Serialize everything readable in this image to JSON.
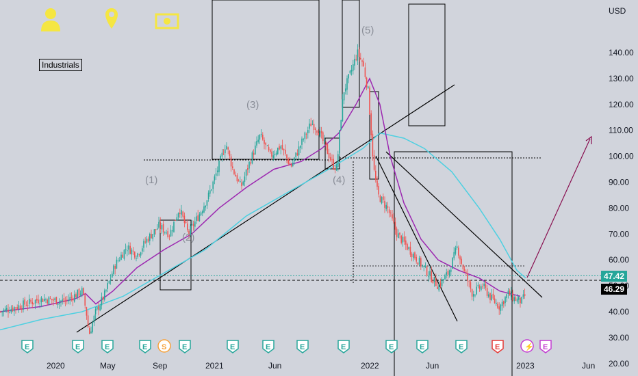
{
  "colors": {
    "bg": "#d1d4dc",
    "sma_fast": "#9c27b0",
    "sma_slow": "#4dd0e1",
    "up": "#26a69a",
    "down": "#ef5350",
    "icon": "#f5e642",
    "last": "#26a69a",
    "current": "#000000",
    "arrow": "#880e4f"
  },
  "header": {
    "sector": "Industrials",
    "icons": [
      "person-icon",
      "location-pin-icon",
      "banknote-icon"
    ]
  },
  "chart_data": {
    "type": "candlestick",
    "currency": "USD",
    "ylim": [
      18,
      150
    ],
    "y_ticks": [
      "140.00",
      "130.00",
      "120.00",
      "110.00",
      "100.00",
      "90.00",
      "80.00",
      "70.00",
      "60.00",
      "50.00",
      "40.00",
      "30.00",
      "20.00"
    ],
    "x_ticks": [
      "2020",
      "May",
      "Sep",
      "2021",
      "Jun",
      "2022",
      "Jun",
      "2023",
      "Jun"
    ],
    "price_labels": {
      "last": "47.42",
      "current": "46.29"
    },
    "wave_labels": [
      "(1)",
      "(2)",
      "(3)",
      "(4)",
      "(5)"
    ],
    "events": [
      "E",
      "E",
      "E",
      "E",
      "S",
      "E",
      "E",
      "E",
      "E",
      "E",
      "E",
      "E",
      "E",
      "E",
      "E",
      "E",
      "E"
    ],
    "price_path": [
      [
        0,
        40
      ],
      [
        25,
        42
      ],
      [
        60,
        45
      ],
      [
        95,
        44
      ],
      [
        120,
        48
      ],
      [
        126,
        40
      ],
      [
        130,
        31
      ],
      [
        140,
        40
      ],
      [
        152,
        46
      ],
      [
        168,
        58
      ],
      [
        185,
        65
      ],
      [
        200,
        62
      ],
      [
        215,
        68
      ],
      [
        232,
        73
      ],
      [
        248,
        70
      ],
      [
        262,
        80
      ],
      [
        275,
        70
      ],
      [
        292,
        78
      ],
      [
        305,
        85
      ],
      [
        318,
        95
      ],
      [
        330,
        105
      ],
      [
        340,
        95
      ],
      [
        352,
        88
      ],
      [
        365,
        98
      ],
      [
        380,
        108
      ],
      [
        395,
        100
      ],
      [
        410,
        104
      ],
      [
        425,
        96
      ],
      [
        440,
        105
      ],
      [
        455,
        113
      ],
      [
        465,
        110
      ],
      [
        478,
        102
      ],
      [
        486,
        97
      ],
      [
        492,
        95
      ],
      [
        497,
        112
      ],
      [
        502,
        125
      ],
      [
        512,
        132
      ],
      [
        522,
        140
      ],
      [
        530,
        136
      ],
      [
        538,
        125
      ],
      [
        546,
        95
      ],
      [
        552,
        85
      ],
      [
        566,
        80
      ],
      [
        580,
        70
      ],
      [
        595,
        65
      ],
      [
        610,
        60
      ],
      [
        625,
        55
      ],
      [
        640,
        50
      ],
      [
        655,
        55
      ],
      [
        668,
        65
      ],
      [
        675,
        58
      ],
      [
        690,
        47
      ],
      [
        705,
        50
      ],
      [
        718,
        45
      ],
      [
        730,
        42
      ],
      [
        742,
        47
      ],
      [
        752,
        45
      ],
      [
        762,
        44
      ],
      [
        767,
        46.3
      ]
    ],
    "sma_fast_path": [
      [
        0,
        40
      ],
      [
        60,
        42
      ],
      [
        110,
        45
      ],
      [
        125,
        47
      ],
      [
        140,
        43
      ],
      [
        165,
        48
      ],
      [
        200,
        57
      ],
      [
        240,
        64
      ],
      [
        280,
        70
      ],
      [
        320,
        80
      ],
      [
        360,
        88
      ],
      [
        400,
        95
      ],
      [
        440,
        98
      ],
      [
        470,
        103
      ],
      [
        495,
        109
      ],
      [
        520,
        120
      ],
      [
        540,
        130
      ],
      [
        555,
        120
      ],
      [
        570,
        100
      ],
      [
        590,
        82
      ],
      [
        615,
        68
      ],
      [
        640,
        60
      ],
      [
        670,
        56
      ],
      [
        700,
        53
      ],
      [
        730,
        48
      ],
      [
        760,
        46
      ]
    ],
    "sma_slow_path": [
      [
        0,
        33
      ],
      [
        60,
        37
      ],
      [
        120,
        40
      ],
      [
        180,
        46
      ],
      [
        240,
        55
      ],
      [
        300,
        64
      ],
      [
        360,
        77
      ],
      [
        420,
        86
      ],
      [
        480,
        95
      ],
      [
        530,
        103
      ],
      [
        555,
        109
      ],
      [
        590,
        107
      ],
      [
        620,
        103
      ],
      [
        660,
        94
      ],
      [
        700,
        80
      ],
      [
        730,
        68
      ],
      [
        755,
        56
      ],
      [
        768,
        53
      ]
    ],
    "drawings": {
      "notes": "trendlines, rectangles, horizontal levels and a projection arrow as drawn by the author"
    }
  }
}
